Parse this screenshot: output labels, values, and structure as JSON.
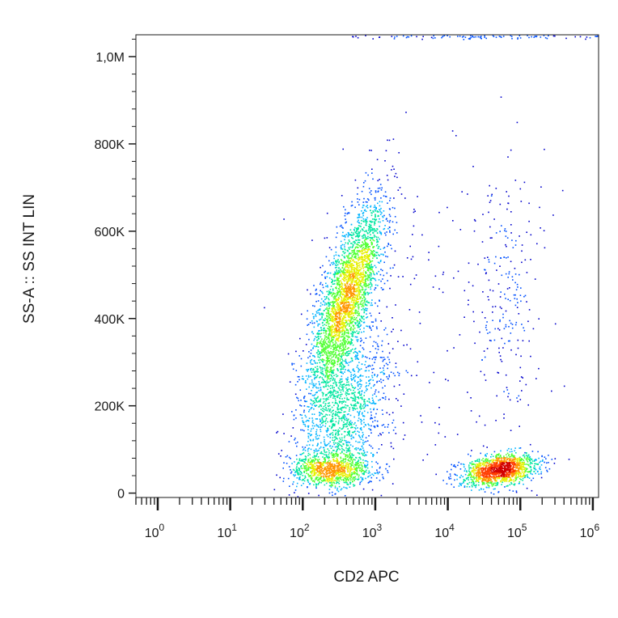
{
  "chart_data": {
    "type": "scatter",
    "subtype": "flow-cytometry-density-dot-plot",
    "xlabel": "CD2 APC",
    "ylabel": "SS-A :: SS INT LIN",
    "x_scale": "log",
    "y_scale": "linear",
    "xlim": [
      0.5,
      1200000
    ],
    "ylim": [
      -10000,
      1050000
    ],
    "x_ticks": [
      {
        "value": 1,
        "base": "10",
        "exp": "0"
      },
      {
        "value": 10,
        "base": "10",
        "exp": "1"
      },
      {
        "value": 100,
        "base": "10",
        "exp": "2"
      },
      {
        "value": 1000,
        "base": "10",
        "exp": "3"
      },
      {
        "value": 10000,
        "base": "10",
        "exp": "4"
      },
      {
        "value": 100000,
        "base": "10",
        "exp": "5"
      },
      {
        "value": 1000000,
        "base": "10",
        "exp": "6"
      }
    ],
    "y_ticks": [
      {
        "value": 0,
        "label": "0"
      },
      {
        "value": 200000,
        "label": "200K"
      },
      {
        "value": 400000,
        "label": "400K"
      },
      {
        "value": 600000,
        "label": "600K"
      },
      {
        "value": 800000,
        "label": "800K"
      },
      {
        "value": 1000000,
        "label": "1,0M"
      }
    ],
    "grid": false,
    "density_colors": [
      "#0000cc",
      "#0050ff",
      "#00b4ff",
      "#00e6a0",
      "#50ff32",
      "#e6f000",
      "#ff9600",
      "#ff3c00",
      "#d20000"
    ],
    "populations": [
      {
        "x_center": 400,
        "y_center": 450000,
        "count": 3000
      },
      {
        "x_center": 350,
        "y_center": 180000,
        "count": 1400
      },
      {
        "x_center": 250,
        "y_center": 55000,
        "count": 900
      },
      {
        "x_center": 50000,
        "y_center": 55000,
        "count": 1400
      },
      {
        "x_center": 60000,
        "y_center": 430000,
        "count": 200
      },
      {
        "x_center": 5000,
        "y_center": 300000,
        "count": 250
      },
      {
        "x_center": 30000,
        "y_center": 1050000,
        "count": 200
      }
    ]
  }
}
